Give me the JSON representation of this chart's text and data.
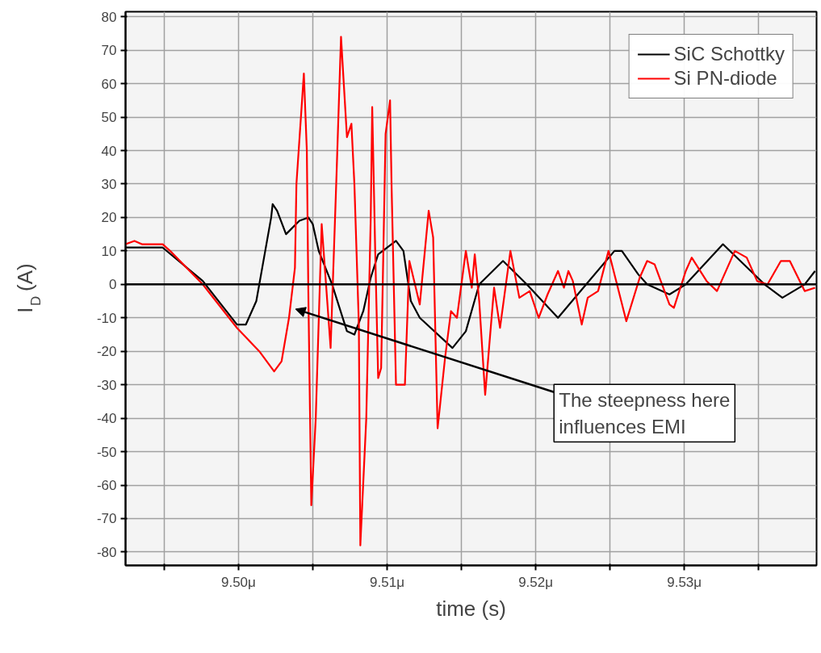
{
  "chart_data": {
    "type": "line",
    "xlabel": "time (s)",
    "ylabel": "I$_{D}$ (A)",
    "xlim": [
      9.4924,
      9.5389
    ],
    "ylim": [
      -84,
      81.5
    ],
    "xticks": [
      {
        "value": 9.495,
        "label": null
      },
      {
        "value": 9.5,
        "label": "9.50μ"
      },
      {
        "value": 9.505,
        "label": null
      },
      {
        "value": 9.51,
        "label": "9.51μ"
      },
      {
        "value": 9.515,
        "label": null
      },
      {
        "value": 9.52,
        "label": "9.52μ"
      },
      {
        "value": 9.525,
        "label": null
      },
      {
        "value": 9.53,
        "label": "9.53μ"
      },
      {
        "value": 9.535,
        "label": null
      }
    ],
    "yticks": [
      -80,
      -70,
      -60,
      -50,
      -40,
      -30,
      -20,
      -10,
      0,
      10,
      20,
      30,
      40,
      50,
      60,
      70,
      80
    ],
    "grid": true,
    "legend": "top right",
    "line_style": "solid",
    "ref_lines": [
      {
        "axis": "y",
        "value": 0,
        "color": "#000000"
      }
    ],
    "annotations": [
      "The steepness here\ninfluences EMI"
    ],
    "series": [
      {
        "name": "SiC Schottky",
        "color": "#000000",
        "x": [
          9.4924,
          9.4949,
          9.4976,
          9.4999,
          9.5005,
          9.5012,
          9.5016,
          9.5022,
          9.5023,
          9.5026,
          9.5032,
          9.5041,
          9.5047,
          9.505,
          9.5054,
          9.5063,
          9.5073,
          9.5078,
          9.5084,
          9.5089,
          9.5094,
          9.5106,
          9.5111,
          9.5116,
          9.5122,
          9.5144,
          9.5153,
          9.5162,
          9.5178,
          9.5194,
          9.5215,
          9.5234,
          9.5253,
          9.5258,
          9.5269,
          9.5275,
          9.529,
          9.5301,
          9.5326,
          9.5354,
          9.5366,
          9.5381,
          9.5388
        ],
        "values": [
          11,
          11,
          1,
          -12,
          -12,
          -5,
          5,
          20,
          24,
          22,
          15,
          19,
          20,
          18,
          10,
          0,
          -14,
          -15,
          -8,
          2,
          9,
          13,
          10,
          -5,
          -10,
          -19,
          -14,
          0,
          7,
          0,
          -10,
          0,
          10,
          10,
          3,
          0,
          -3,
          0,
          12,
          0,
          -4,
          0,
          4
        ]
      },
      {
        "name": "Si PN-diode",
        "color": "#ff0000",
        "x": [
          9.4924,
          9.493,
          9.4935,
          9.4949,
          9.4954,
          9.4976,
          9.4999,
          9.5014,
          9.5024,
          9.5029,
          9.5034,
          9.5038,
          9.5039,
          9.5044,
          9.5046,
          9.5047,
          9.5049,
          9.5052,
          9.5056,
          9.5062,
          9.5066,
          9.5069,
          9.5073,
          9.5076,
          9.5078,
          9.5081,
          9.5082,
          9.5086,
          9.5089,
          9.509,
          9.5092,
          9.5094,
          9.5096,
          9.5099,
          9.5102,
          9.5103,
          9.5105,
          9.5106,
          9.5112,
          9.5115,
          9.5122,
          9.5128,
          9.5131,
          9.5134,
          9.5139,
          9.5143,
          9.5147,
          9.5153,
          9.5157,
          9.5159,
          9.5162,
          9.5166,
          9.5172,
          9.5176,
          9.5183,
          9.5189,
          9.5196,
          9.5202,
          9.5208,
          9.5215,
          9.5219,
          9.5222,
          9.5225,
          9.5231,
          9.5235,
          9.5242,
          9.5249,
          9.5261,
          9.527,
          9.5275,
          9.528,
          9.529,
          9.5293,
          9.5301,
          9.5305,
          9.5315,
          9.5322,
          9.5334,
          9.5342,
          9.5349,
          9.5356,
          9.5365,
          9.5371,
          9.5381,
          9.5388
        ],
        "values": [
          12,
          13,
          12,
          12,
          10,
          0,
          -13,
          -20,
          -26,
          -23,
          -10,
          5,
          30,
          63,
          40,
          -2,
          -66,
          -40,
          18,
          -19,
          33,
          74,
          44,
          48,
          30,
          -12,
          -78,
          -40,
          20,
          53,
          10,
          -28,
          -25,
          45,
          55,
          30,
          -10,
          -30,
          -30,
          7,
          -6,
          22,
          14,
          -43,
          -22,
          -8,
          -10,
          10,
          -1,
          9,
          -5,
          -33,
          -1,
          -13,
          10,
          -4,
          -2,
          -10,
          -3,
          4,
          -1,
          4,
          1,
          -12,
          -4,
          -2,
          10,
          -11,
          2,
          7,
          6,
          -6,
          -7,
          4,
          8,
          1,
          -2,
          10,
          8,
          1,
          0,
          7,
          7,
          -2,
          -1
        ]
      }
    ]
  }
}
